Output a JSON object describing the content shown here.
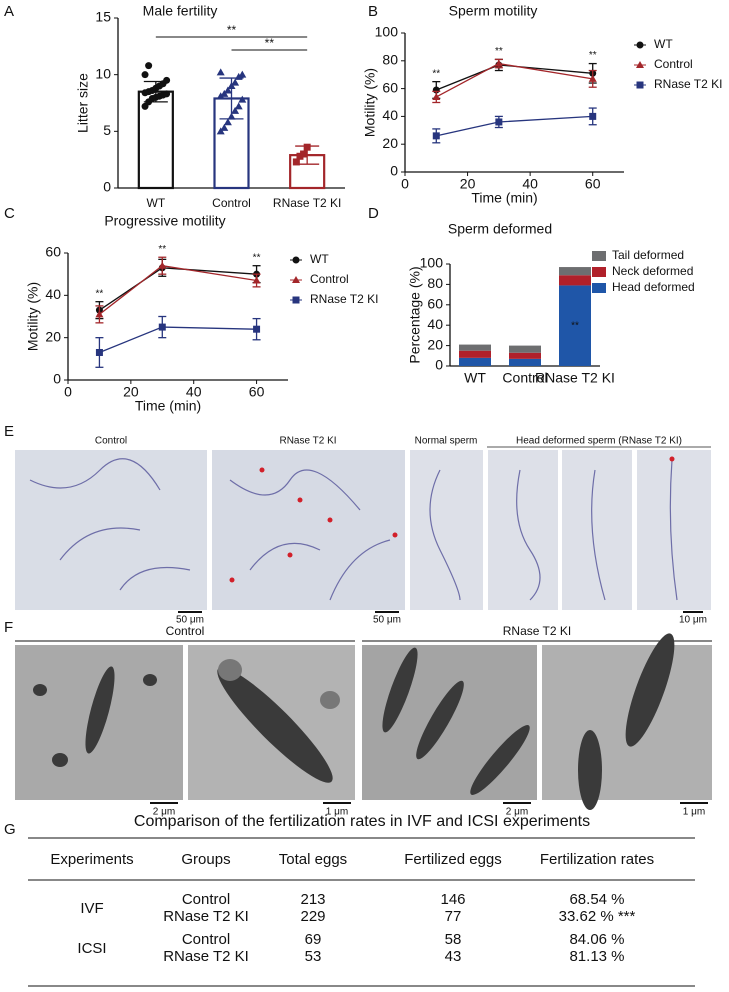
{
  "panels": [
    "A",
    "B",
    "C",
    "D",
    "E",
    "F",
    "G"
  ],
  "chart_data": [
    {
      "type": "bar",
      "title": "Male fertility",
      "y_label": "Litter size",
      "categories": [
        "WT",
        "Control",
        "RNase T2 KI"
      ],
      "colors": [
        "#111111",
        "#27357e",
        "#a3262a"
      ],
      "values": [
        8.5,
        7.9,
        2.9
      ],
      "errors": [
        0.9,
        1.8,
        0.8
      ],
      "points": [
        [
          7.2,
          7.6,
          7.9,
          8.0,
          8.1,
          8.2,
          8.3,
          8.4,
          8.5,
          8.6,
          8.8,
          9.0,
          9.2,
          9.5,
          10.0,
          10.8
        ],
        [
          5.0,
          5.3,
          5.8,
          6.3,
          6.8,
          7.2,
          7.8,
          8.1,
          8.3,
          8.6,
          9.0,
          9.3,
          9.8,
          10.0,
          10.2
        ],
        [
          2.3,
          2.8,
          3.0,
          3.6
        ]
      ],
      "ylim": [
        0,
        15
      ],
      "yticks": [
        0,
        5,
        10,
        15
      ],
      "annotations": [
        {
          "text": "**",
          "between": [
            "WT",
            "RNase T2 KI"
          ]
        },
        {
          "text": "**",
          "between": [
            "Control",
            "RNase T2 KI"
          ]
        }
      ]
    },
    {
      "type": "line",
      "title": "Sperm motility",
      "x_label": "Time (min)",
      "y_label": "Motility (%)",
      "x": [
        10,
        30,
        60
      ],
      "xlim": [
        0,
        70
      ],
      "xticks": [
        0,
        20,
        40,
        60
      ],
      "ylim": [
        0,
        100
      ],
      "yticks": [
        0,
        20,
        40,
        60,
        80,
        100
      ],
      "series": [
        {
          "name": "WT",
          "color": "#111111",
          "marker": "circle",
          "values": [
            59,
            77,
            71
          ],
          "errors": [
            6,
            4,
            7
          ]
        },
        {
          "name": "Control",
          "color": "#a3262a",
          "marker": "triangle",
          "values": [
            54,
            78,
            67
          ],
          "errors": [
            4,
            3,
            6
          ]
        },
        {
          "name": "RNase T2 KI",
          "color": "#27357e",
          "marker": "square",
          "values": [
            26,
            36,
            40
          ],
          "errors": [
            5,
            4,
            6
          ]
        }
      ],
      "annotations": [
        {
          "text": "**",
          "x": 10
        },
        {
          "text": "**",
          "x": 30
        },
        {
          "text": "**",
          "x": 60
        }
      ]
    },
    {
      "type": "line",
      "title": "Progressive motility",
      "x_label": "Time (min)",
      "y_label": "Motility (%)",
      "x": [
        10,
        30,
        60
      ],
      "xlim": [
        0,
        70
      ],
      "xticks": [
        0,
        20,
        40,
        60
      ],
      "ylim": [
        0,
        60
      ],
      "yticks": [
        0,
        20,
        40,
        60
      ],
      "series": [
        {
          "name": "WT",
          "color": "#111111",
          "marker": "circle",
          "values": [
            33,
            53,
            50
          ],
          "errors": [
            4,
            4,
            4
          ]
        },
        {
          "name": "Control",
          "color": "#a3262a",
          "marker": "triangle",
          "values": [
            31,
            54,
            47
          ],
          "errors": [
            4,
            4,
            3
          ]
        },
        {
          "name": "RNase T2 KI",
          "color": "#27357e",
          "marker": "square",
          "values": [
            13,
            25,
            24
          ],
          "errors": [
            7,
            5,
            5
          ]
        }
      ],
      "annotations": [
        {
          "text": "**",
          "x": 10
        },
        {
          "text": "**",
          "x": 30
        },
        {
          "text": "**",
          "x": 60
        }
      ]
    },
    {
      "type": "stacked_bar",
      "title": "Sperm deformed",
      "y_label": "Percentage (%)",
      "categories": [
        "WT",
        "Control",
        "RNase T2 KI"
      ],
      "ylim": [
        0,
        100
      ],
      "yticks": [
        0,
        20,
        40,
        60,
        80,
        100
      ],
      "series": [
        {
          "name": "Head deformed",
          "color": "#1f56a8",
          "values": [
            8,
            7,
            79
          ]
        },
        {
          "name": "Neck deformed",
          "color": "#b0202a",
          "values": [
            7,
            6,
            10
          ]
        },
        {
          "name": "Tail deformed",
          "color": "#6d6e70",
          "values": [
            6,
            7,
            8
          ]
        }
      ],
      "annotations": [
        {
          "text": "**",
          "category": "RNase T2 KI"
        }
      ]
    }
  ],
  "micrographs": {
    "E": {
      "labels": [
        "Control",
        "RNase T2 KI",
        "Normal sperm",
        "Head deformed sperm (RNase T2 KI)"
      ],
      "scale_bars": [
        "50 μm",
        "50 μm",
        "10 μm"
      ]
    },
    "F": {
      "labels": [
        "Control",
        "RNase T2 KI"
      ],
      "scale_bars": [
        "2 μm",
        "1 μm",
        "2 μm",
        "1 μm"
      ]
    }
  },
  "table": {
    "title": "Comparison of the fertilization rates in IVF and ICSI experiments",
    "header": [
      "Experiments",
      "Groups",
      "Total eggs",
      "Fertilized eggs",
      "Fertilization rates"
    ],
    "groups": [
      {
        "name": "IVF",
        "rows": [
          [
            "Control",
            213,
            146,
            "68.54 %"
          ],
          [
            "RNase T2 KI",
            229,
            77,
            "33.62 % ***"
          ]
        ]
      },
      {
        "name": "ICSI",
        "rows": [
          [
            "Control",
            69,
            58,
            "84.06 %"
          ],
          [
            "RNase T2 KI",
            53,
            43,
            "81.13 %"
          ]
        ]
      }
    ]
  }
}
